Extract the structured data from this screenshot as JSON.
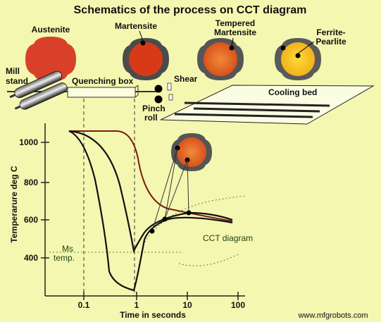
{
  "title": "Schematics of the process on CCT diagram",
  "microstructures": [
    {
      "label": "Austenite",
      "fill": "#d94026"
    },
    {
      "label": "Martensite",
      "fill": "#d93b18"
    },
    {
      "label_line1": "Tempered",
      "label_line2": "Martensite",
      "fill": "#e8742a"
    },
    {
      "label_line1": "Ferrite-",
      "label_line2": "Pearlite",
      "fill": "#f6c12a"
    }
  ],
  "equipment": {
    "mill_stand_line1": "Mill",
    "mill_stand_line2": "stand",
    "quenching_box": "Quenching box",
    "shear": "Shear",
    "pinch_roll_line1": "Pinch",
    "pinch_roll_line2": "roll",
    "cooling_bed": "Cooling bed"
  },
  "chart": {
    "ylabel": "Temperarure deg C",
    "xlabel": "Time in seconds",
    "y_ticks": [
      "1000",
      "800",
      "600",
      "400"
    ],
    "x_ticks": [
      "0.1",
      "1",
      "10",
      "100"
    ],
    "ms_label_line1": "Ms",
    "ms_label_line2": "temp.",
    "cct_label": "CCT diagram"
  },
  "watermark": "www.mfgrobots.com",
  "colors": {
    "background": "#f4f7b0",
    "curve_dark": "#111111",
    "curve_red": "#7a1a10",
    "cct_green": "#4a8a3a"
  }
}
